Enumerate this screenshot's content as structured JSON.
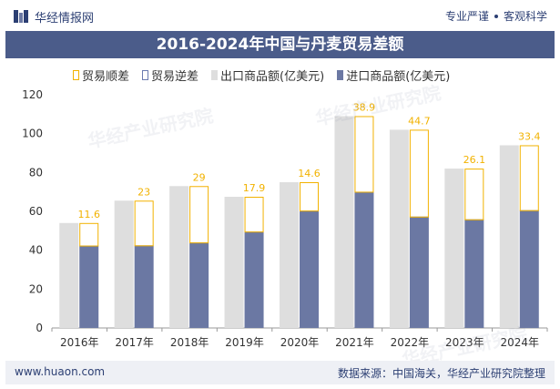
{
  "header": {
    "brand": "华经情报网",
    "slogan_left": "专业严谨",
    "slogan_right": "客观科学"
  },
  "title": "2016-2024年中国与丹麦贸易差额",
  "legend": [
    {
      "label": "贸易顺差",
      "style": "outline-gold"
    },
    {
      "label": "贸易逆差",
      "style": "outline-blue"
    },
    {
      "label": "出口商品额(亿美元)",
      "style": "gray"
    },
    {
      "label": "进口商品额(亿美元)",
      "style": "navy"
    }
  ],
  "watermark": "华经产业研究院",
  "chart_data": {
    "type": "bar",
    "categories": [
      "2016年",
      "2017年",
      "2018年",
      "2019年",
      "2020年",
      "2021年",
      "2022年",
      "2023年",
      "2024年"
    ],
    "series": [
      {
        "name": "出口商品额(亿美元)",
        "values": [
          54,
          65.5,
          73,
          67.5,
          75,
          109,
          102,
          82,
          94
        ],
        "color": "#dedede"
      },
      {
        "name": "进口商品额(亿美元)",
        "values": [
          42.4,
          42.5,
          44,
          49.6,
          60.4,
          70.1,
          57.3,
          55.9,
          60.6
        ],
        "color": "#6b78a3"
      }
    ],
    "trade_balance": {
      "name": "贸易顺差",
      "labels": [
        "11.6",
        "23",
        "29",
        "17.9",
        "14.6",
        "38.9",
        "44.7",
        "26.1",
        "33.4"
      ],
      "color": "#f2b200"
    },
    "ylim": [
      0,
      120
    ],
    "yticks": [
      0,
      20,
      40,
      60,
      80,
      100,
      120
    ],
    "grid": false
  },
  "footer": {
    "url": "www.huaon.com",
    "source": "数据来源：中国海关，华经产业研究院整理"
  }
}
